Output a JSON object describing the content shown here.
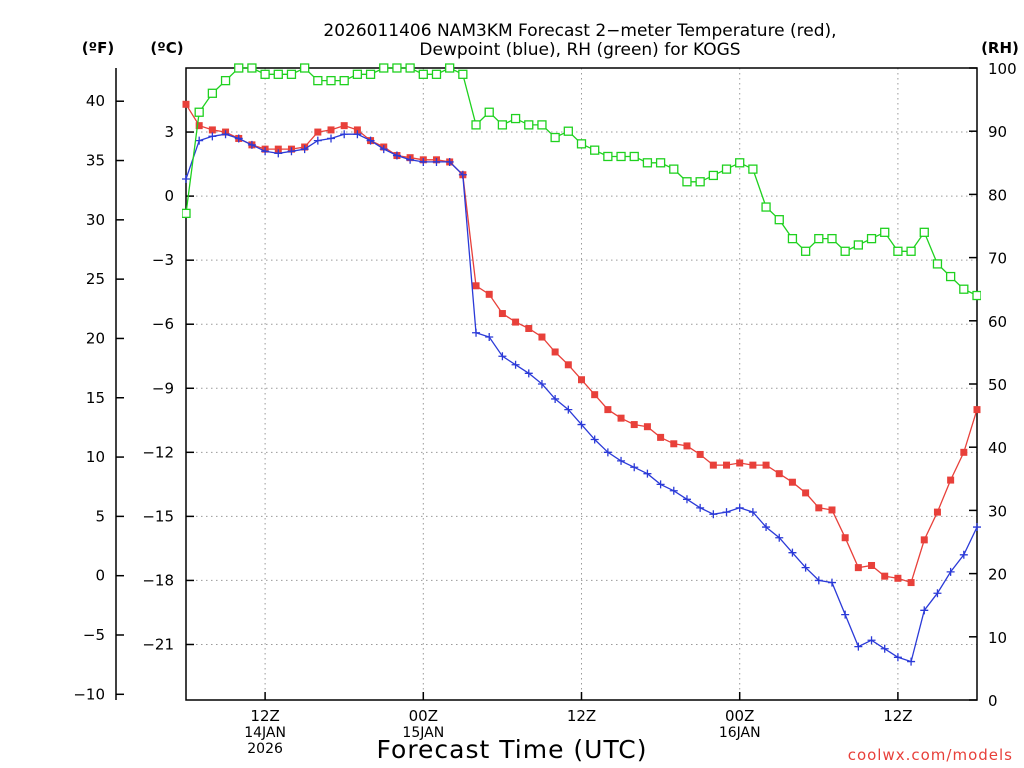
{
  "chart_data": {
    "type": "line",
    "title_lines": [
      "2026011406 NAM3KM Forecast 2−meter Temperature (red),",
      "Dewpoint (blue), RH (green) for KOGS"
    ],
    "xlabel": "Forecast Time (UTC)",
    "credit": "coolwx.com/models",
    "axis_units": {
      "fahrenheit": "(ºF)",
      "celsius": "(ºC)",
      "rh": "(RH)"
    },
    "x_hours_range": [
      0,
      60
    ],
    "x_ticks": [
      {
        "hour": 6,
        "lines": [
          "12Z",
          "14JAN",
          "2026"
        ]
      },
      {
        "hour": 18,
        "lines": [
          "00Z",
          "15JAN"
        ]
      },
      {
        "hour": 30,
        "lines": [
          "12Z"
        ]
      },
      {
        "hour": 42,
        "lines": [
          "00Z",
          "16JAN"
        ]
      },
      {
        "hour": 54,
        "lines": [
          "12Z"
        ]
      }
    ],
    "celsius_range": [
      -23.6,
      6.0
    ],
    "celsius_ticks": [
      3,
      0,
      -3,
      -6,
      -9,
      -12,
      -15,
      -18,
      -21
    ],
    "celsius_tick_labels": [
      "3",
      "0",
      "−3",
      "−6",
      "−9",
      "−12",
      "−15",
      "−18",
      "−21"
    ],
    "fahrenheit_ticks": [
      40,
      35,
      30,
      25,
      20,
      15,
      10,
      5,
      0,
      -5,
      -10
    ],
    "fahrenheit_tick_labels": [
      "40",
      "35",
      "30",
      "25",
      "20",
      "15",
      "10",
      "5",
      "0",
      "−5",
      "−10"
    ],
    "rh_range": [
      0,
      100
    ],
    "rh_ticks": [
      100,
      90,
      80,
      70,
      60,
      50,
      40,
      30,
      20,
      10,
      0
    ],
    "rh_tick_labels": [
      "100",
      "90",
      "80",
      "70",
      "60",
      "50",
      "40",
      "30",
      "20",
      "10",
      "0"
    ],
    "series": [
      {
        "name": "Temperature",
        "axis": "celsius",
        "color": "#e8403a",
        "marker": "filled-square",
        "values": [
          4.3,
          3.3,
          3.1,
          3.0,
          2.7,
          2.4,
          2.2,
          2.2,
          2.2,
          2.3,
          3.0,
          3.1,
          3.3,
          3.1,
          2.6,
          2.3,
          1.9,
          1.8,
          1.7,
          1.7,
          1.6,
          1.0,
          -4.2,
          -4.6,
          -5.5,
          -5.9,
          -6.2,
          -6.6,
          -7.3,
          -7.9,
          -8.6,
          -9.3,
          -10.0,
          -10.4,
          -10.7,
          -10.8,
          -11.3,
          -11.6,
          -11.7,
          -12.1,
          -12.6,
          -12.6,
          -12.5,
          -12.6,
          -12.6,
          -13.0,
          -13.4,
          -13.9,
          -14.6,
          -14.7,
          -16.0,
          -17.4,
          -17.3,
          -17.8,
          -17.9,
          -18.1,
          -16.1,
          -14.8,
          -13.3,
          -12.0,
          -10.0
        ]
      },
      {
        "name": "Dewpoint",
        "axis": "celsius",
        "color": "#2b3ad8",
        "marker": "plus",
        "values": [
          0.8,
          2.6,
          2.8,
          2.9,
          2.7,
          2.4,
          2.1,
          2.0,
          2.1,
          2.2,
          2.6,
          2.7,
          2.9,
          2.9,
          2.6,
          2.2,
          1.9,
          1.7,
          1.6,
          1.6,
          1.6,
          1.0,
          -6.4,
          -6.6,
          -7.5,
          -7.9,
          -8.3,
          -8.8,
          -9.5,
          -10.0,
          -10.7,
          -11.4,
          -12.0,
          -12.4,
          -12.7,
          -13.0,
          -13.5,
          -13.8,
          -14.2,
          -14.6,
          -14.9,
          -14.8,
          -14.6,
          -14.8,
          -15.5,
          -16.0,
          -16.7,
          -17.4,
          -18.0,
          -18.1,
          -19.6,
          -21.1,
          -20.8,
          -21.2,
          -21.6,
          -21.8,
          -19.4,
          -18.6,
          -17.6,
          -16.8,
          -15.5
        ]
      },
      {
        "name": "RH",
        "axis": "rh",
        "color": "#1fd11f",
        "marker": "hollow-square",
        "values": [
          77,
          93,
          96,
          98,
          100,
          100,
          99,
          99,
          99,
          100,
          98,
          98,
          98,
          99,
          99,
          100,
          100,
          100,
          99,
          99,
          100,
          99,
          91,
          93,
          91,
          92,
          91,
          91,
          89,
          90,
          88,
          87,
          86,
          86,
          86,
          85,
          85,
          84,
          82,
          82,
          83,
          84,
          85,
          84,
          78,
          76,
          73,
          71,
          73,
          73,
          71,
          72,
          73,
          74,
          71,
          71,
          74,
          69,
          67,
          65,
          64
        ]
      }
    ]
  }
}
